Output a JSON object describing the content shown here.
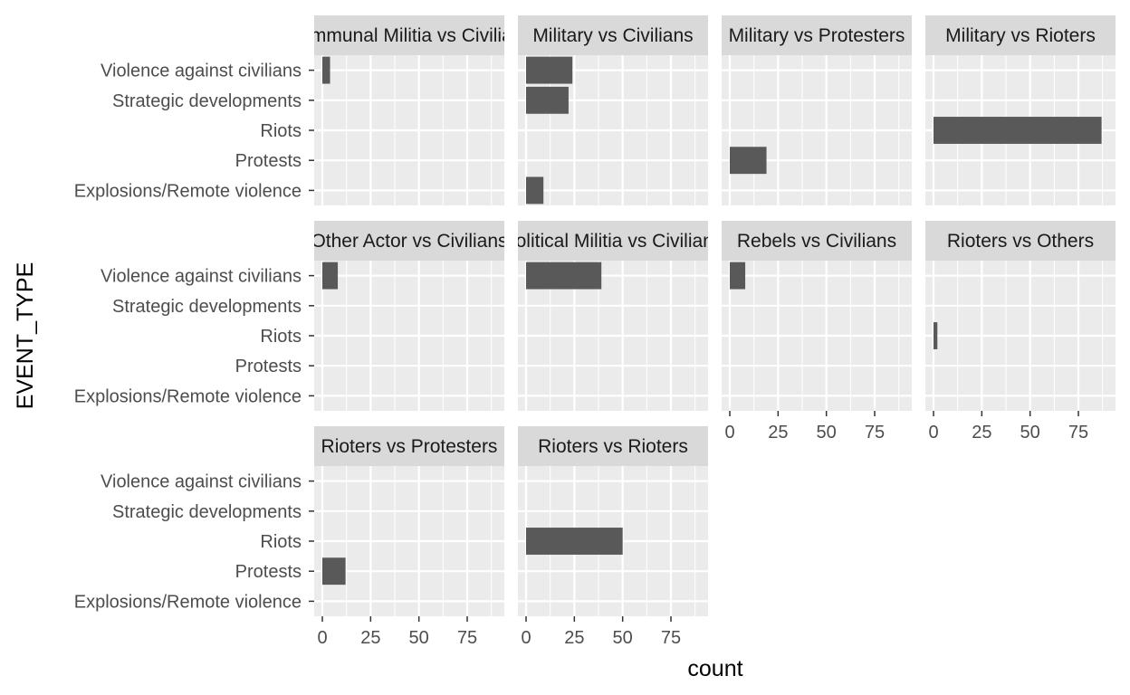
{
  "chart_data": {
    "type": "bar",
    "orientation": "horizontal",
    "faceted": true,
    "facet_columns": 4,
    "xlabel": "count",
    "ylabel": "EVENT_TYPE",
    "xlim": [
      0,
      90
    ],
    "x_ticks": [
      "0",
      "25",
      "50",
      "75"
    ],
    "categories": [
      "Violence against civilians",
      "Strategic developments",
      "Riots",
      "Protests",
      "Explosions/Remote violence"
    ],
    "grid": true,
    "colors": {
      "bar": "#595959",
      "panel": "#ebebeb",
      "strip": "#d9d9d9",
      "grid": "#ffffff"
    },
    "facets": [
      {
        "title": "Communal Militia vs Civilians",
        "values": [
          4,
          0,
          0,
          0,
          0
        ]
      },
      {
        "title": "Military vs Civilians",
        "values": [
          24,
          22,
          0,
          0,
          9
        ]
      },
      {
        "title": "Military vs Protesters",
        "values": [
          0,
          0,
          0,
          19,
          0
        ]
      },
      {
        "title": "Military vs Rioters",
        "values": [
          0,
          0,
          87,
          0,
          0
        ]
      },
      {
        "title": "Other Actor vs Civilians",
        "values": [
          8,
          0,
          0,
          0,
          0
        ]
      },
      {
        "title": "Political Militia vs Civilians",
        "values": [
          39,
          0,
          0,
          0,
          0
        ]
      },
      {
        "title": "Rebels vs Civilians",
        "values": [
          8,
          0,
          0,
          0,
          0
        ]
      },
      {
        "title": "Rioters vs Others",
        "values": [
          0,
          0,
          2,
          0,
          0
        ]
      },
      {
        "title": "Rioters vs Protesters",
        "values": [
          0,
          0,
          0,
          12,
          0
        ]
      },
      {
        "title": "Rioters vs Rioters",
        "values": [
          0,
          0,
          50,
          0,
          0
        ]
      }
    ]
  }
}
